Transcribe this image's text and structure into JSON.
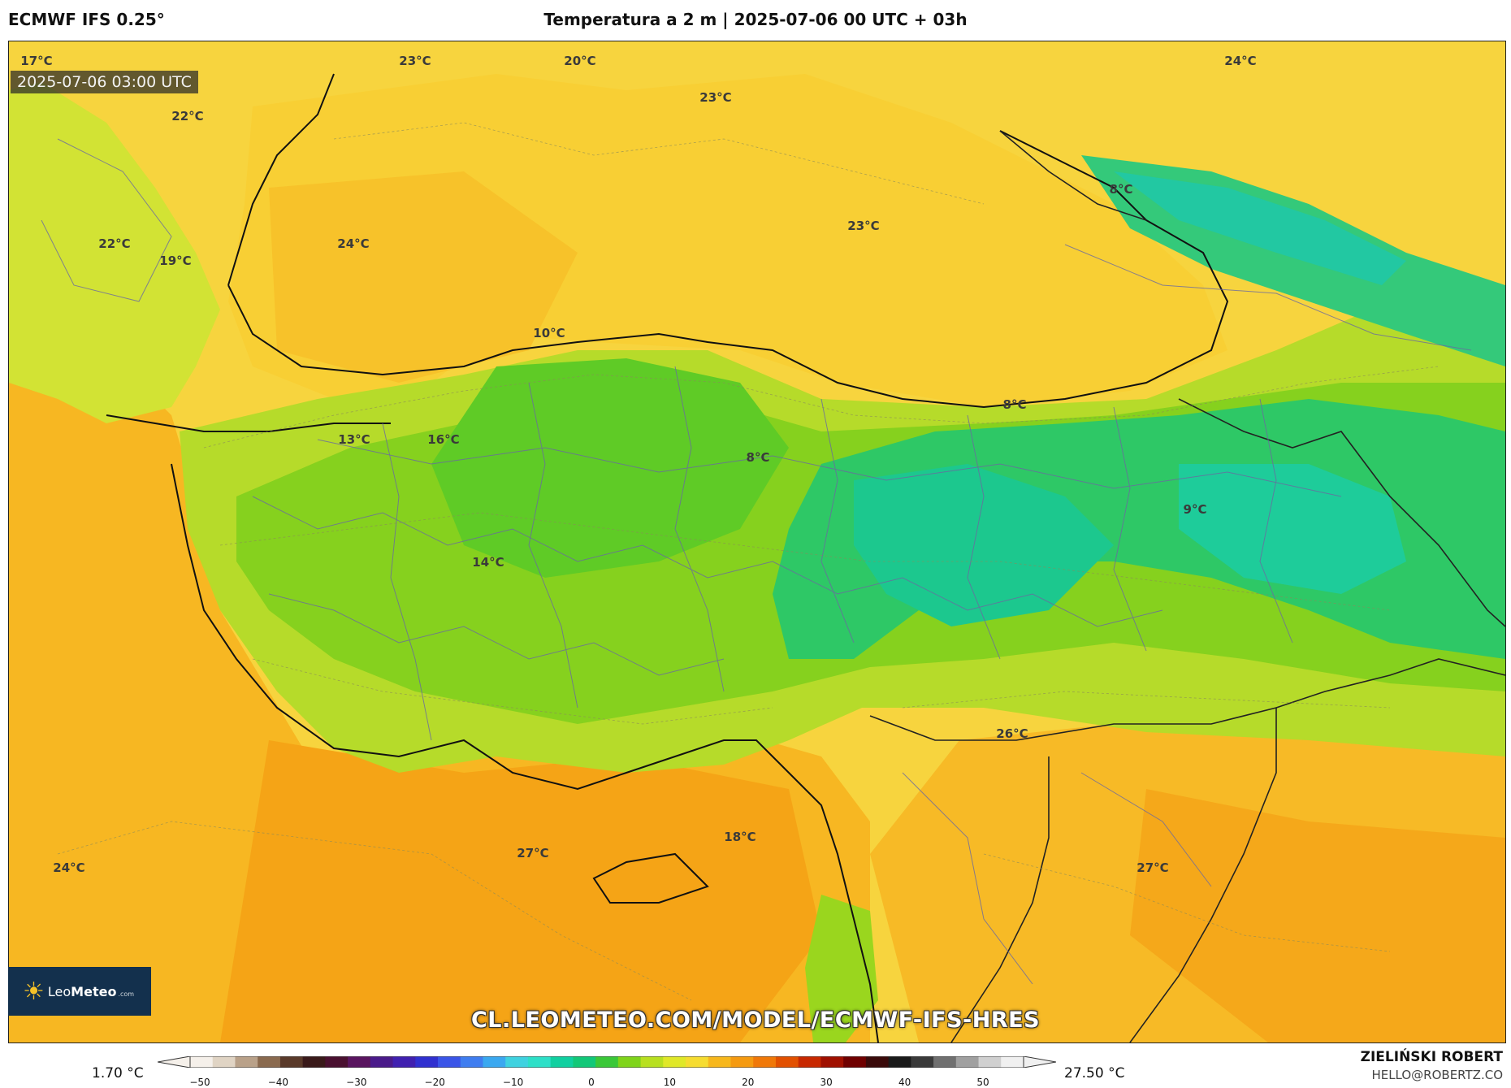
{
  "header": {
    "model": "ECMWF IFS 0.25°",
    "title": "Temperatura a 2 m | 2025-07-06 00 UTC + 03h"
  },
  "map": {
    "valid_time": "2025-07-06 03:00 UTC",
    "temperature_labels": [
      "17°C",
      "23°C",
      "20°C",
      "24°C",
      "22°C",
      "23°C",
      "8°C",
      "22°C",
      "24°C",
      "19°C",
      "23°C",
      "10°C",
      "8°C",
      "13°C",
      "16°C",
      "8°C",
      "9°C",
      "14°C",
      "26°C",
      "27°C",
      "18°C",
      "24°C",
      "27°C"
    ]
  },
  "watermark": {
    "url": "CL.LEOMETEO.COM/MODEL/ECMWF-IFS-HRES",
    "logo_text_regular": "Leo",
    "logo_text_bold": "Meteo",
    "logo_suffix": ".com"
  },
  "colorbar": {
    "min_value": "1.70 °C",
    "max_value": "27.50 °C",
    "ticks": [
      "−50",
      "−40",
      "−30",
      "−20",
      "−10",
      "0",
      "10",
      "20",
      "30",
      "40",
      "50"
    ],
    "colors": [
      "#f5f0ea",
      "#e0d4c4",
      "#b9a189",
      "#8a6a4f",
      "#5a3a2a",
      "#3a1a1a",
      "#4a1030",
      "#5a1560",
      "#4a1a8a",
      "#4020b0",
      "#3030d0",
      "#3a55e8",
      "#3f7df0",
      "#3aa8f0",
      "#3fd2e0",
      "#2de0c8",
      "#10d0a0",
      "#12c878",
      "#3ac838",
      "#7fd41a",
      "#b8e020",
      "#e0e828",
      "#f6dc30",
      "#f7b71c",
      "#f59a10",
      "#f07808",
      "#e25000",
      "#c82800",
      "#a01000",
      "#700000",
      "#3a0a0a",
      "#1a1a1a",
      "#3a3a3a",
      "#707070",
      "#a0a0a0",
      "#d0d0d0",
      "#f0f0f0"
    ]
  },
  "credits": {
    "author": "ZIELIŃSKI ROBERT",
    "email": "HELLO@ROBERTZ.CO"
  }
}
